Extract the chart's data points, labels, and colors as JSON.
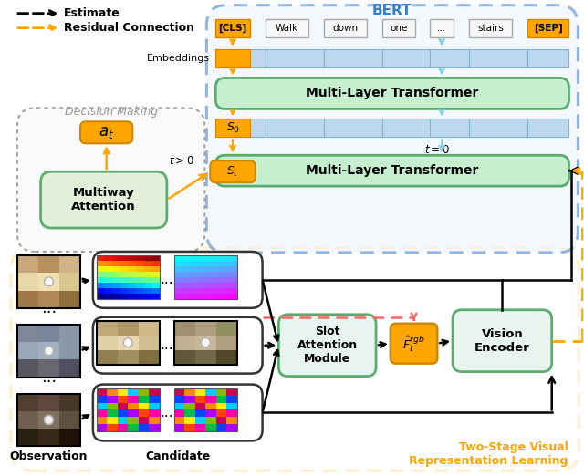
{
  "fig_width": 6.4,
  "fig_height": 5.22,
  "bg": "#ffffff",
  "orange": "#FFA500",
  "orange_dark": "#CC8800",
  "light_blue": "#BDD7EE",
  "light_green": "#C6EFCE",
  "teal_green": "#90D4B0",
  "blue_border": "#3B7EC8",
  "gray": "#999999",
  "red": "#FF6666",
  "green_border": "#5BAD6F",
  "tokens": [
    "[CLS]",
    "Walk",
    "down",
    "one",
    "...",
    "stairs",
    "[SEP]"
  ],
  "bert_label": "BERT",
  "decision_label": "Decision Making",
  "two_stage_label": "Two-Stage Visual\nRepresentation Learning",
  "legend_estimate": "Estimate",
  "legend_residual": "Residual Connection"
}
